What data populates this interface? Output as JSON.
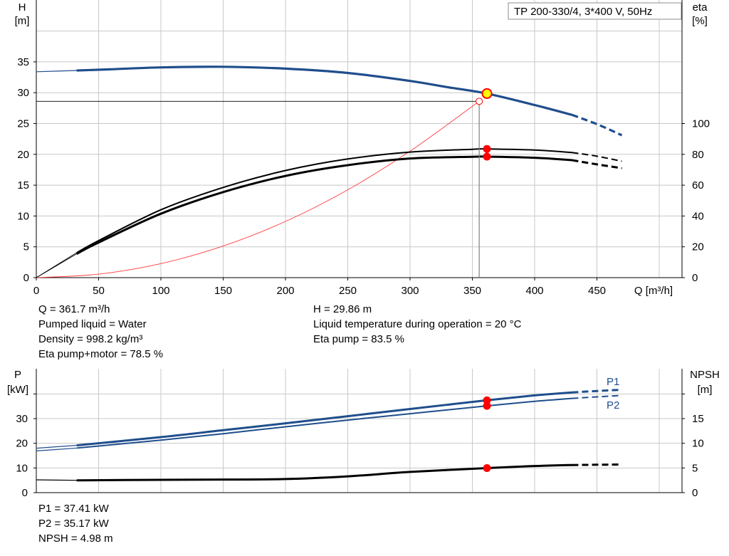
{
  "chart_data": [
    {
      "type": "line",
      "title": "TP 200-330/4, 3*400 V, 50Hz",
      "xlabel": "Q [m³/h]",
      "ylabel_left": [
        "H",
        "[m]"
      ],
      "ylabel_right": [
        "eta",
        "[%]"
      ],
      "xlim": [
        0,
        500
      ],
      "ylim_left": [
        0,
        40
      ],
      "ylim_right": [
        0,
        160
      ],
      "x_ticks": [
        "0",
        "50",
        "100",
        "150",
        "200",
        "250",
        "300",
        "350",
        "400",
        "450"
      ],
      "y_ticks_left": [
        "0",
        "5",
        "10",
        "15",
        "20",
        "25",
        "30",
        "35"
      ],
      "y_ticks_right": [
        "0",
        "20",
        "40",
        "60",
        "80",
        "100"
      ],
      "grid": true,
      "series": [
        {
          "key": "H",
          "axis": "left",
          "color": "#1f4e8c",
          "x": [
            0,
            33,
            60,
            100,
            150,
            200,
            250,
            300,
            330,
            361.7,
            400,
            430
          ],
          "y": [
            33.4,
            33.6,
            33.8,
            34.1,
            34.2,
            33.9,
            33.2,
            31.9,
            30.9,
            29.86,
            28.0,
            26.4
          ],
          "dashed_x": [
            430,
            450,
            470
          ],
          "dashed_y": [
            26.4,
            24.9,
            23.1
          ]
        },
        {
          "key": "eta_pump",
          "axis": "right",
          "color": "#000000",
          "x": [
            33,
            50,
            100,
            150,
            200,
            250,
            300,
            350,
            361.7,
            400,
            430
          ],
          "y": [
            16.5,
            24,
            44,
            58.5,
            69.5,
            77,
            81.5,
            83.3,
            83.5,
            82.8,
            81.2
          ],
          "dashed_x": [
            430,
            450,
            470
          ],
          "dashed_y": [
            81.2,
            78.8,
            75.5
          ]
        },
        {
          "key": "eta_total",
          "axis": "right",
          "color": "#000000",
          "x": [
            33,
            50,
            100,
            150,
            200,
            250,
            300,
            350,
            361.7,
            400,
            430
          ],
          "y": [
            15.7,
            22.8,
            41.5,
            55.5,
            66,
            73,
            77.3,
            78.4,
            78.5,
            77.8,
            76.2
          ],
          "dashed_x": [
            430,
            450,
            470
          ],
          "dashed_y": [
            76.2,
            73.5,
            71.0
          ]
        },
        {
          "key": "system",
          "axis": "left",
          "color": "#ff3b3b",
          "x": [
            0,
            50,
            100,
            150,
            200,
            250,
            300,
            355.5
          ],
          "y": [
            0,
            0.57,
            2.28,
            5.13,
            9.12,
            14.25,
            20.52,
            28.6
          ]
        }
      ],
      "duty_point": {
        "q": 361.7,
        "h": 29.86,
        "eta_pump": 83.5,
        "eta_total": 78.5
      },
      "system_point": {
        "q": 355.5,
        "h": 28.6
      }
    },
    {
      "type": "line",
      "xlim": [
        0,
        500
      ],
      "ylabel_left": [
        "P",
        "[kW]"
      ],
      "ylabel_right": [
        "NPSH",
        "[m]"
      ],
      "ylim_left": [
        0,
        45
      ],
      "ylim_right": [
        0,
        22.5
      ],
      "y_ticks_left": [
        "0",
        "10",
        "20",
        "30"
      ],
      "y_ticks_right": [
        "0",
        "5",
        "10",
        "15"
      ],
      "grid": true,
      "series": [
        {
          "key": "P1",
          "name": "P1",
          "axis": "left",
          "color": "#1f4e8c",
          "x": [
            0,
            33,
            100,
            150,
            200,
            250,
            300,
            361.7,
            400,
            430
          ],
          "y": [
            18,
            19.2,
            22.5,
            25.3,
            28.1,
            31.0,
            33.9,
            37.41,
            39.4,
            40.6
          ],
          "dashed_x": [
            430,
            450,
            470
          ],
          "dashed_y": [
            40.6,
            41.2,
            41.7
          ]
        },
        {
          "key": "P2",
          "name": "P2",
          "axis": "left",
          "color": "#1f4e8c",
          "x": [
            0,
            33,
            100,
            150,
            200,
            250,
            300,
            361.7,
            400,
            430
          ],
          "y": [
            16.9,
            18.1,
            21.3,
            23.9,
            26.7,
            29.4,
            32.0,
            35.17,
            37.0,
            38.2
          ],
          "dashed_x": [
            430,
            450,
            470
          ],
          "dashed_y": [
            38.2,
            38.8,
            39.4
          ]
        },
        {
          "key": "NPSH",
          "axis": "right",
          "color": "#000000",
          "x": [
            0,
            33,
            100,
            150,
            200,
            250,
            300,
            361.7,
            400,
            430
          ],
          "y": [
            2.6,
            2.5,
            2.6,
            2.65,
            2.75,
            3.3,
            4.2,
            4.98,
            5.4,
            5.6
          ],
          "dashed_x": [
            430,
            450,
            470
          ],
          "dashed_y": [
            5.6,
            5.65,
            5.7
          ]
        }
      ],
      "duty_point": {
        "q": 361.7,
        "p1": 37.41,
        "p2": 35.17,
        "npsh": 4.98
      }
    }
  ],
  "info_top": {
    "q": "Q = 361.7 m³/h",
    "liquid": "Pumped liquid = Water",
    "density": "Density = 998.2 kg/m³",
    "eta_total": "Eta pump+motor = 78.5 %",
    "h": "H = 29.86 m",
    "temp": "Liquid temperature during operation = 20 °C",
    "eta_pump": "Eta pump = 83.5 %"
  },
  "info_bottom": {
    "p1": "P1 = 37.41 kW",
    "p2": "P2 = 35.17 kW",
    "npsh": "NPSH = 4.98 m"
  },
  "colors": {
    "blue": "#1f4e8c",
    "red": "#ff0000",
    "yellow": "#ffff00",
    "grid": "#c8c8c8"
  }
}
